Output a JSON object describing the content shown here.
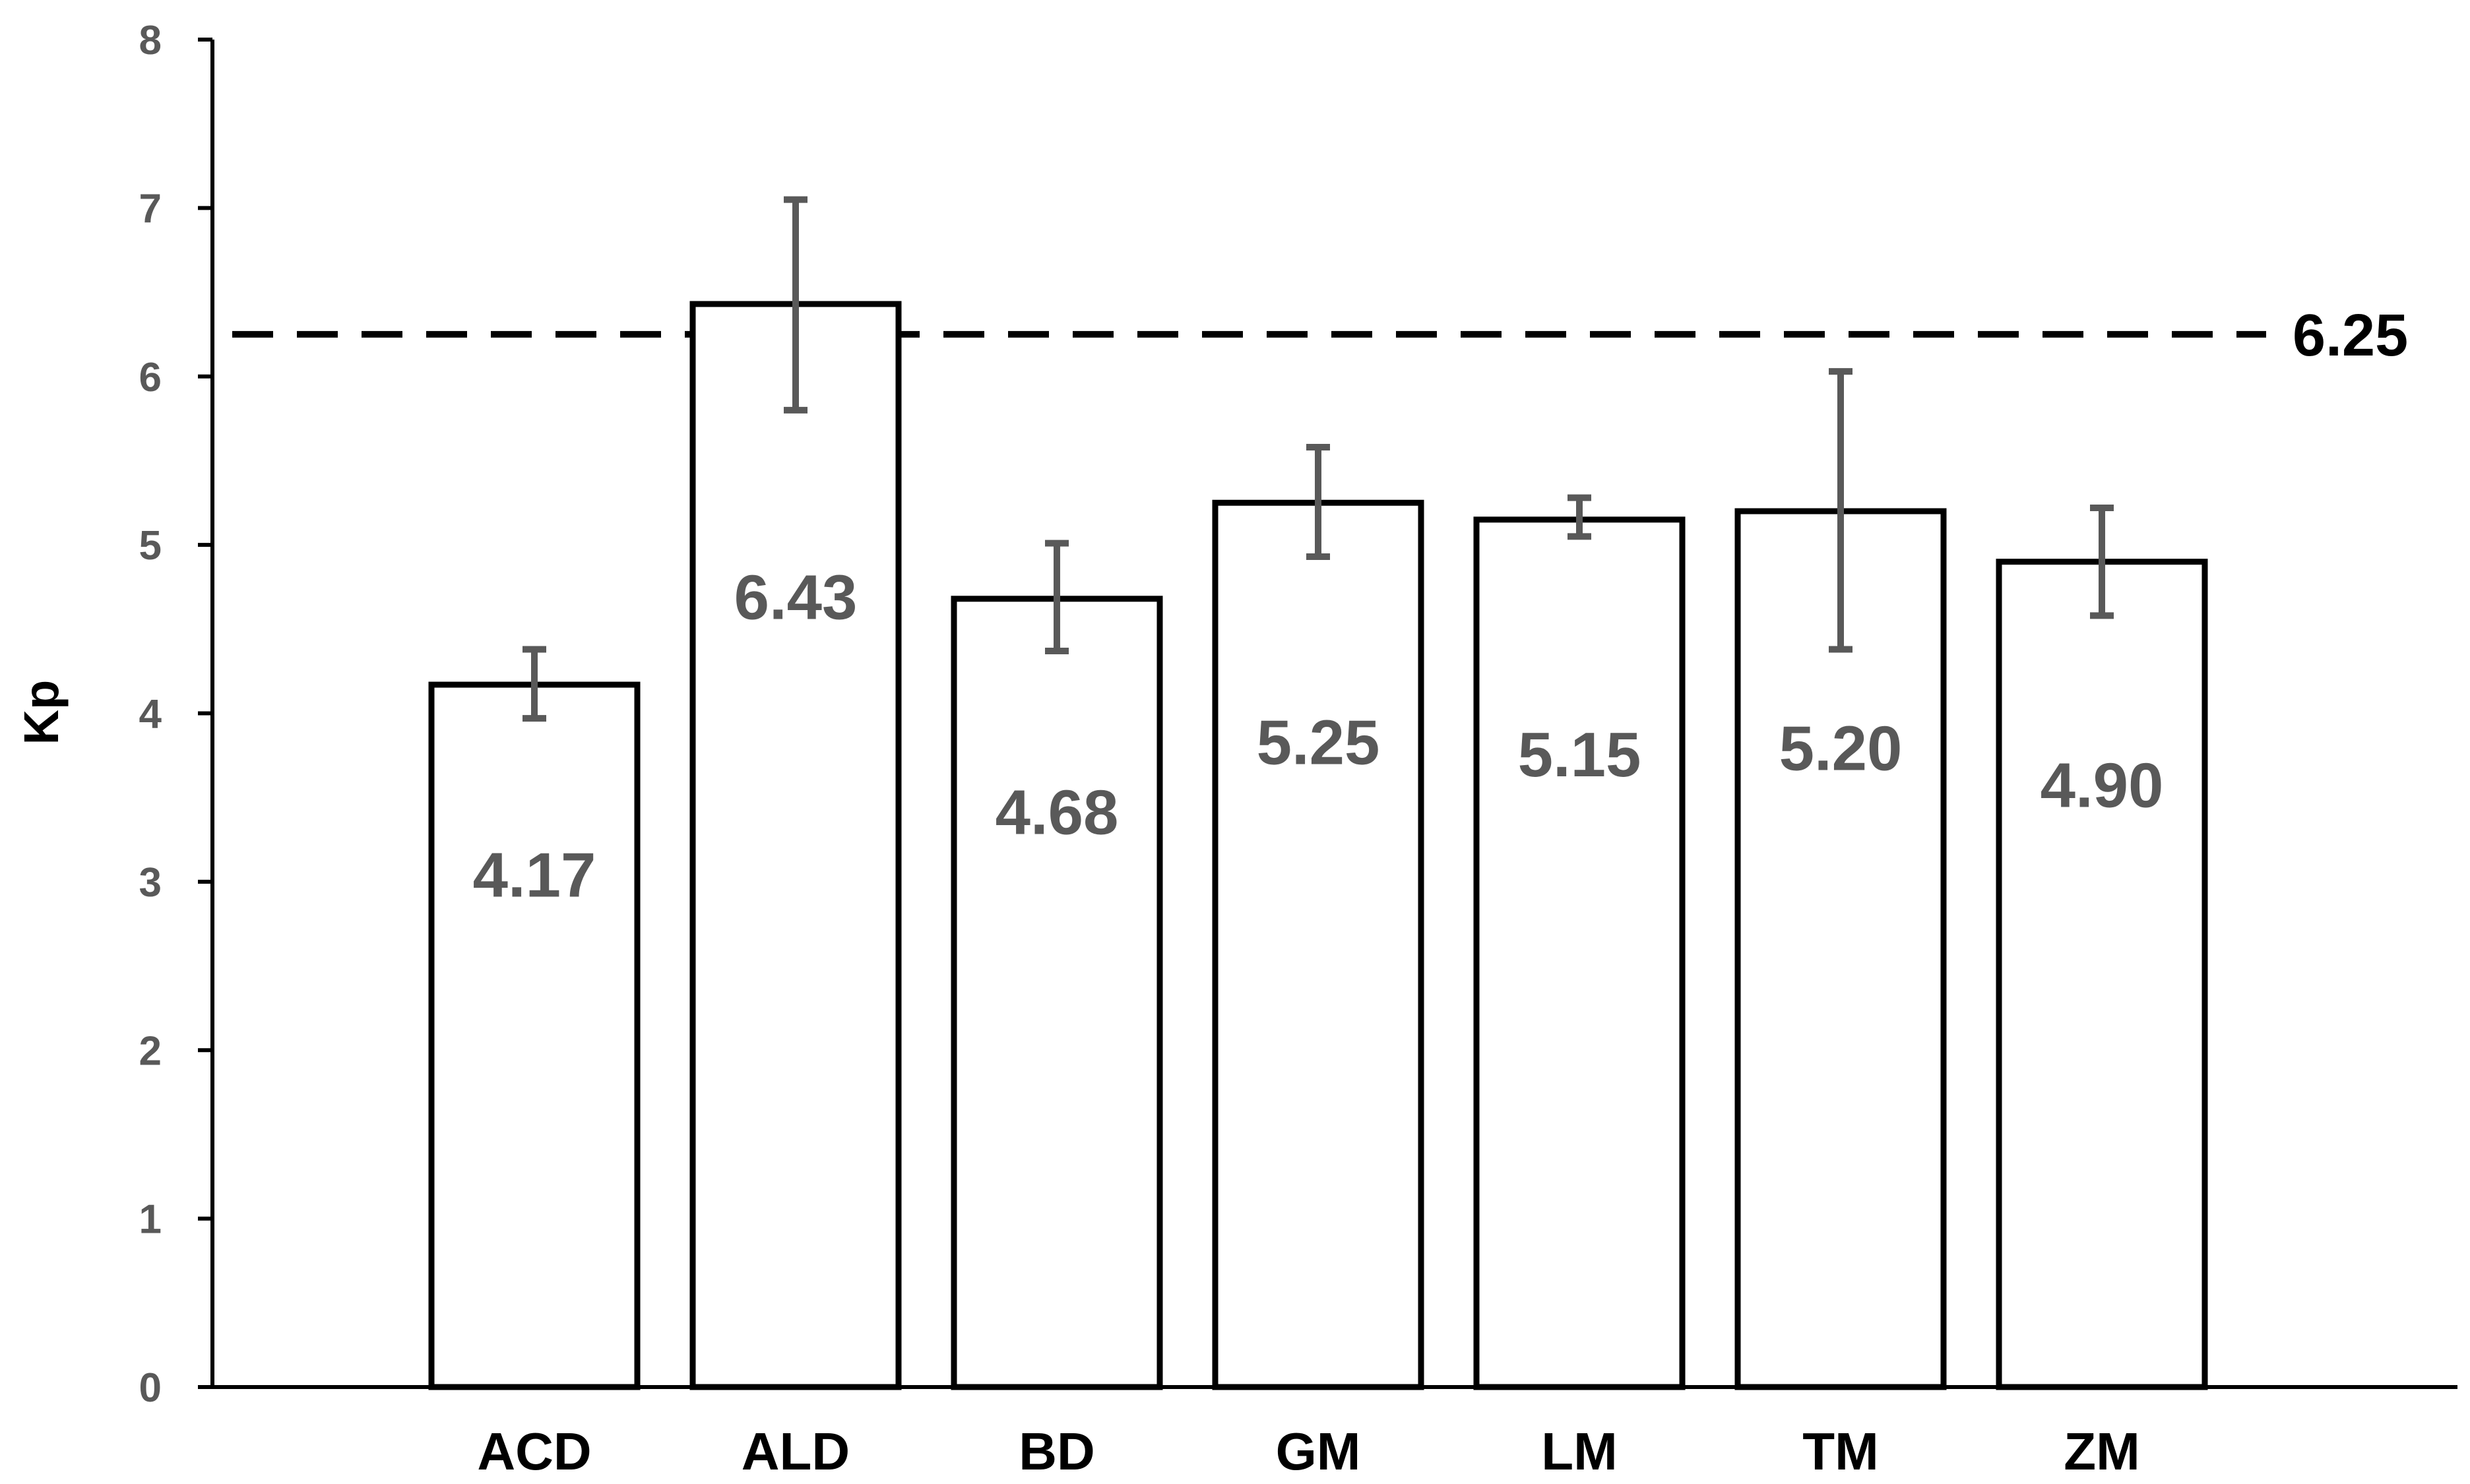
{
  "chart_data": {
    "type": "bar",
    "title": "",
    "xlabel": "",
    "ylabel": "Kp",
    "ylim": [
      0,
      8
    ],
    "yticks": [
      0,
      1,
      2,
      3,
      4,
      5,
      6,
      7,
      8
    ],
    "grid": false,
    "legend": "none",
    "categories": [
      "ACD",
      "ALD",
      "BD",
      "GM",
      "LM",
      "TM",
      "ZM"
    ],
    "values": [
      4.17,
      6.43,
      4.68,
      5.25,
      5.15,
      5.2,
      4.9
    ],
    "value_labels": [
      "4.17",
      "6.43",
      "4.68",
      "5.25",
      "5.15",
      "5.20",
      "4.90"
    ],
    "error_bars": {
      "lower": [
        3.97,
        5.8,
        4.37,
        4.93,
        5.05,
        4.38,
        4.58
      ],
      "upper": [
        4.38,
        7.05,
        5.01,
        5.58,
        5.28,
        6.03,
        5.22
      ]
    },
    "reference_line": {
      "value": 6.25,
      "label": "6.25",
      "style": "dashed"
    },
    "colors": {
      "bar_fill": "#ffffff",
      "bar_stroke": "#000000",
      "error_bar": "#595959",
      "axis": "#000000",
      "tick_label": "#595959",
      "category_label": "#000000",
      "value_label": "#595959",
      "reference_line": "#000000"
    }
  }
}
